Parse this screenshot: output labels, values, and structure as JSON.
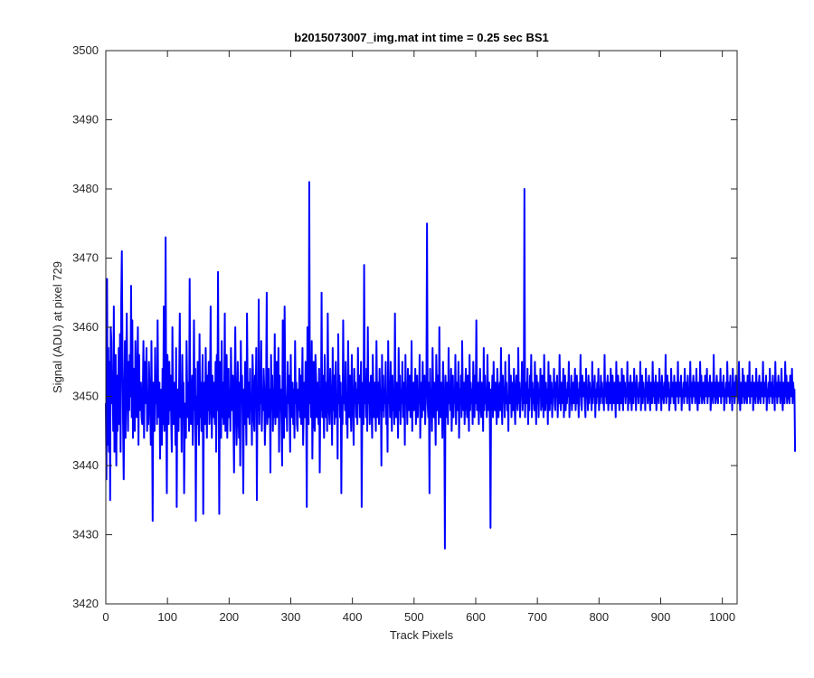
{
  "chart_data": {
    "type": "line",
    "title": "b2015073007_img.mat int time = 0.25 sec   BS1",
    "xlabel": "Track Pixels",
    "ylabel": "Signal (ADU) at pixel 729",
    "xlim": [
      0,
      1024
    ],
    "ylim": [
      3420,
      3500
    ],
    "xticks": [
      0,
      100,
      200,
      300,
      400,
      500,
      600,
      700,
      800,
      900,
      1000
    ],
    "yticks": [
      3420,
      3430,
      3440,
      3450,
      3460,
      3470,
      3480,
      3490,
      3500
    ],
    "grid": false,
    "legend": "none",
    "series": [
      {
        "color": "#0000ff",
        "x_start": 0,
        "x_step": 1,
        "y": [
          3449,
          3438,
          3467,
          3443,
          3457,
          3442,
          3455,
          3435,
          3460,
          3458,
          3449,
          3453,
          3445,
          3463,
          3442,
          3450,
          3456,
          3440,
          3453,
          3445,
          3451,
          3457,
          3446,
          3459,
          3442,
          3464,
          3471,
          3457,
          3446,
          3438,
          3449,
          3458,
          3444,
          3454,
          3462,
          3450,
          3445,
          3455,
          3448,
          3456,
          3450,
          3466,
          3447,
          3461,
          3444,
          3454,
          3452,
          3445,
          3458,
          3451,
          3447,
          3453,
          3460,
          3443,
          3456,
          3448,
          3451,
          3452,
          3447,
          3446,
          3450,
          3458,
          3444,
          3455,
          3449,
          3452,
          3457,
          3445,
          3450,
          3446,
          3455,
          3451,
          3448,
          3443,
          3458,
          3447,
          3432,
          3452,
          3450,
          3445,
          3457,
          3449,
          3453,
          3446,
          3461,
          3450,
          3447,
          3452,
          3441,
          3448,
          3451,
          3443,
          3454,
          3446,
          3463,
          3445,
          3450,
          3473,
          3447,
          3436,
          3456,
          3451,
          3446,
          3455,
          3448,
          3453,
          3447,
          3442,
          3460,
          3450,
          3446,
          3452,
          3449,
          3443,
          3457,
          3434,
          3451,
          3449,
          3445,
          3453,
          3462,
          3447,
          3450,
          3442,
          3456,
          3448,
          3452,
          3436,
          3446,
          3449,
          3444,
          3458,
          3451,
          3447,
          3452,
          3445,
          3467,
          3449,
          3446,
          3450,
          3453,
          3443,
          3447,
          3461,
          3448,
          3454,
          3432,
          3450,
          3446,
          3455,
          3449,
          3443,
          3459,
          3447,
          3452,
          3445,
          3451,
          3456,
          3433,
          3448,
          3452,
          3446,
          3457,
          3450,
          3444,
          3453,
          3448,
          3455,
          3446,
          3451,
          3463,
          3449,
          3444,
          3453,
          3447,
          3452,
          3449,
          3446,
          3455,
          3442,
          3456,
          3448,
          3468,
          3450,
          3433,
          3455,
          3449,
          3444,
          3458,
          3447,
          3452,
          3446,
          3449,
          3462,
          3445,
          3451,
          3456,
          3444,
          3449,
          3454,
          3447,
          3451,
          3445,
          3457,
          3450,
          3448,
          3453,
          3446,
          3439,
          3452,
          3460,
          3449,
          3443,
          3447,
          3455,
          3450,
          3444,
          3452,
          3440,
          3458,
          3449,
          3453,
          3445,
          3436,
          3451,
          3446,
          3455,
          3449,
          3443,
          3462,
          3451,
          3447,
          3452,
          3446,
          3454,
          3448,
          3450,
          3443,
          3456,
          3452,
          3447,
          3445,
          3453,
          3449,
          3457,
          3435,
          3451,
          3448,
          3464,
          3446,
          3452,
          3449,
          3458,
          3445,
          3450,
          3448,
          3454,
          3451,
          3443,
          3447,
          3452,
          3465,
          3446,
          3449,
          3454,
          3447,
          3451,
          3439,
          3456,
          3448,
          3453,
          3445,
          3451,
          3447,
          3459,
          3446,
          3450,
          3455,
          3447,
          3449,
          3457,
          3442,
          3453,
          3448,
          3451,
          3446,
          3440,
          3461,
          3449,
          3444,
          3463,
          3452,
          3447,
          3450,
          3445,
          3455,
          3449,
          3453,
          3448,
          3442,
          3456,
          3447,
          3450,
          3452,
          3446,
          3451,
          3444,
          3458,
          3449,
          3452,
          3446,
          3445,
          3451,
          3448,
          3454,
          3447,
          3453,
          3446,
          3450,
          3457,
          3443,
          3449,
          3452,
          3447,
          3455,
          3448,
          3434,
          3460,
          3451,
          3446,
          3481,
          3449,
          3452,
          3447,
          3458,
          3441,
          3450,
          3455,
          3446,
          3445,
          3456,
          3453,
          3447,
          3452,
          3449,
          3446,
          3454,
          3439,
          3451,
          3448,
          3465,
          3447,
          3453,
          3449,
          3444,
          3456,
          3450,
          3447,
          3452,
          3445,
          3462,
          3451,
          3448,
          3446,
          3454,
          3450,
          3449,
          3443,
          3457,
          3448,
          3453,
          3446,
          3451,
          3455,
          3447,
          3450,
          3441,
          3459,
          3449,
          3453,
          3447,
          3452,
          3436,
          3450,
          3446,
          3461,
          3449,
          3452,
          3448,
          3455,
          3446,
          3450,
          3444,
          3458,
          3451,
          3447,
          3453,
          3449,
          3445,
          3456,
          3450,
          3448,
          3443,
          3454,
          3449,
          3452,
          3447,
          3451,
          3446,
          3457,
          3449,
          3453,
          3447,
          3450,
          3455,
          3434,
          3448,
          3452,
          3446,
          3469,
          3449,
          3451,
          3447,
          3454,
          3445,
          3460,
          3449,
          3452,
          3446,
          3450,
          3453,
          3448,
          3444,
          3456,
          3451,
          3447,
          3452,
          3449,
          3445,
          3458,
          3450,
          3447,
          3452,
          3446,
          3454,
          3449,
          3451,
          3440,
          3456,
          3448,
          3453,
          3447,
          3451,
          3449,
          3455,
          3446,
          3450,
          3442,
          3458,
          3449,
          3452,
          3447,
          3455,
          3450,
          3445,
          3453,
          3448,
          3451,
          3446,
          3462,
          3449,
          3447,
          3452,
          3450,
          3444,
          3457,
          3448,
          3453,
          3446,
          3451,
          3449,
          3455,
          3447,
          3450,
          3452,
          3443,
          3456,
          3449,
          3451,
          3446,
          3454,
          3448,
          3450,
          3453,
          3447,
          3449,
          3458,
          3445,
          3451,
          3452,
          3448,
          3449,
          3454,
          3446,
          3450,
          3453,
          3447,
          3451,
          3449,
          3456,
          3444,
          3450,
          3452,
          3447,
          3455,
          3449,
          3448,
          3453,
          3446,
          3450,
          3451,
          3475,
          3449,
          3447,
          3452,
          3436,
          3454,
          3448,
          3451,
          3445,
          3457,
          3450,
          3447,
          3452,
          3449,
          3443,
          3456,
          3451,
          3448,
          3453,
          3446,
          3460,
          3450,
          3447,
          3452,
          3449,
          3444,
          3455,
          3451,
          3448,
          3428,
          3453,
          3447,
          3450,
          3452,
          3446,
          3457,
          3449,
          3451,
          3448,
          3454,
          3445,
          3450,
          3453,
          3447,
          3451,
          3449,
          3456,
          3446,
          3452,
          3448,
          3450,
          3455,
          3444,
          3451,
          3449,
          3453,
          3447,
          3458,
          3450,
          3448,
          3452,
          3446,
          3451,
          3454,
          3449,
          3447,
          3453,
          3450,
          3445,
          3456,
          3448,
          3452,
          3449,
          3451,
          3446,
          3455,
          3450,
          3447,
          3453,
          3449,
          3461,
          3448,
          3451,
          3452,
          3446,
          3450,
          3454,
          3449,
          3447,
          3452,
          3450,
          3445,
          3457,
          3448,
          3453,
          3449,
          3451,
          3447,
          3456,
          3450,
          3448,
          3452,
          3446,
          3431,
          3451,
          3449,
          3453,
          3447,
          3455,
          3450,
          3448,
          3452,
          3449,
          3446,
          3454,
          3451,
          3447,
          3450,
          3452,
          3448,
          3457,
          3449,
          3446,
          3453,
          3450,
          3451,
          3447,
          3455,
          3449,
          3452,
          3448,
          3450,
          3445,
          3456,
          3451,
          3449,
          3453,
          3447,
          3450,
          3452,
          3448,
          3454,
          3449,
          3446,
          3451,
          3453,
          3450,
          3448,
          3457,
          3449,
          3452,
          3447,
          3451,
          3450,
          3455,
          3448,
          3453,
          3449,
          3480,
          3447,
          3452,
          3450,
          3449,
          3454,
          3446,
          3451,
          3448,
          3453,
          3450,
          3456,
          3447,
          3452,
          3449,
          3451,
          3448,
          3455,
          3450,
          3446,
          3453,
          3449,
          3452,
          3447,
          3451,
          3450,
          3454,
          3448,
          3449,
          3453,
          3451,
          3447,
          3456,
          3450,
          3448,
          3452,
          3449,
          3451,
          3446,
          3455,
          3450,
          3448,
          3453,
          3449,
          3452,
          3447,
          3451,
          3450,
          3454,
          3449,
          3448,
          3452,
          3450,
          3453,
          3447,
          3451,
          3449,
          3456,
          3450,
          3448,
          3452,
          3451,
          3449,
          3454,
          3447,
          3450,
          3453,
          3448,
          3451,
          3449,
          3452,
          3450,
          3455,
          3447,
          3451,
          3449,
          3453,
          3448,
          3450,
          3452,
          3449,
          3451,
          3454,
          3448,
          3450,
          3453,
          3449,
          3451,
          3447,
          3452,
          3450,
          3456,
          3449,
          3448,
          3453,
          3451,
          3450,
          3452,
          3449,
          3447,
          3454,
          3450,
          3451,
          3448,
          3453,
          3449,
          3452,
          3450,
          3451,
          3448,
          3455,
          3449,
          3452,
          3450,
          3453,
          3447,
          3451,
          3449,
          3452,
          3450,
          3454,
          3448,
          3451,
          3449,
          3453,
          3450,
          3452,
          3449,
          3451,
          3448,
          3456,
          3450,
          3452,
          3449,
          3451,
          3453,
          3448,
          3450,
          3452,
          3449,
          3454,
          3451,
          3448,
          3453,
          3450,
          3449,
          3452,
          3451,
          3447,
          3455,
          3450,
          3449,
          3453,
          3451,
          3448,
          3452,
          3450,
          3449,
          3454,
          3451,
          3448,
          3453,
          3450,
          3452,
          3449,
          3451,
          3450,
          3455,
          3448,
          3452,
          3449,
          3451,
          3453,
          3450,
          3448,
          3452,
          3451,
          3449,
          3454,
          3450,
          3452,
          3448,
          3453,
          3450,
          3451,
          3449,
          3452,
          3450,
          3455,
          3448,
          3451,
          3453,
          3449,
          3452,
          3450,
          3451,
          3448,
          3454,
          3450,
          3452,
          3449,
          3451,
          3453,
          3450,
          3448,
          3452,
          3451,
          3449,
          3455,
          3450,
          3452,
          3449,
          3451,
          3453,
          3448,
          3450,
          3452,
          3451,
          3449,
          3454,
          3450,
          3452,
          3448,
          3453,
          3451,
          3450,
          3449,
          3452,
          3450,
          3456,
          3449,
          3451,
          3453,
          3450,
          3452,
          3448,
          3451,
          3449,
          3454,
          3450,
          3452,
          3451,
          3449,
          3453,
          3450,
          3448,
          3452,
          3451,
          3450,
          3455,
          3449,
          3452,
          3450,
          3451,
          3453,
          3448,
          3451,
          3450,
          3452,
          3449,
          3454,
          3451,
          3450,
          3452,
          3449,
          3453,
          3450,
          3451,
          3448,
          3455,
          3450,
          3452,
          3449,
          3451,
          3453,
          3450,
          3452,
          3449,
          3451,
          3454,
          3450,
          3448,
          3452,
          3451,
          3449,
          3455,
          3450,
          3453,
          3449,
          3451,
          3452,
          3450,
          3449,
          3453,
          3451,
          3450,
          3454,
          3449,
          3452,
          3450,
          3451,
          3453,
          3448,
          3450,
          3452,
          3451,
          3449,
          3456,
          3450,
          3452,
          3449,
          3451,
          3453,
          3450,
          3449,
          3452,
          3451,
          3450,
          3454,
          3449,
          3452,
          3450,
          3451,
          3453,
          3448,
          3451,
          3450,
          3452,
          3449,
          3455,
          3451,
          3450,
          3452,
          3449,
          3453,
          3450,
          3451,
          3448,
          3454,
          3450,
          3452,
          3449,
          3451,
          3453,
          3450,
          3452,
          3449,
          3451,
          3455,
          3450,
          3448,
          3452,
          3451,
          3449,
          3454,
          3450,
          3453,
          3449,
          3451,
          3452,
          3450,
          3449,
          3453,
          3451,
          3450,
          3455,
          3449,
          3452,
          3450,
          3451,
          3453,
          3448,
          3450,
          3452,
          3451,
          3449,
          3454,
          3450,
          3452,
          3449,
          3451,
          3453,
          3450,
          3449,
          3452,
          3451,
          3450,
          3455,
          3449,
          3452,
          3450,
          3451,
          3453,
          3448,
          3451,
          3450,
          3452,
          3449,
          3454,
          3451,
          3450,
          3452,
          3449,
          3453,
          3450,
          3451,
          3448,
          3455,
          3450,
          3452,
          3449,
          3451,
          3453,
          3450,
          3452,
          3449,
          3451,
          3454,
          3450,
          3448,
          3452,
          3451,
          3449,
          3455,
          3450,
          3453,
          3449,
          3451,
          3452,
          3450,
          3449,
          3453,
          3451,
          3450,
          3454,
          3449,
          3452,
          3450,
          3451,
          3442
        ]
      }
    ]
  }
}
